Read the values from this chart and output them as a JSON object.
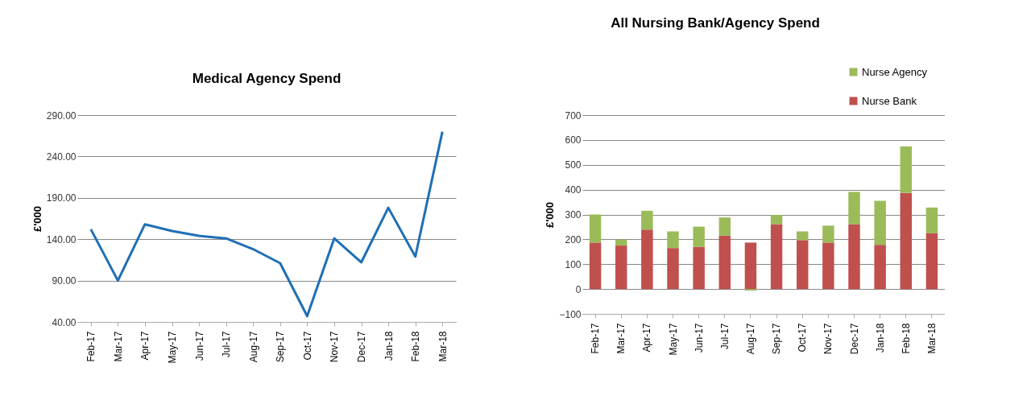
{
  "chart_data": [
    {
      "type": "line",
      "title": "Medical Agency Spend",
      "ylabel": "£'000",
      "categories": [
        "Feb-17",
        "Mar-17",
        "Apr-17",
        "May-17",
        "Jun-17",
        "Jul-17",
        "Aug-17",
        "Sep-17",
        "Oct-17",
        "Nov-17",
        "Dec-17",
        "Jan-18",
        "Feb-18",
        "Mar-18"
      ],
      "series": [
        {
          "color": "#1f6fb5",
          "values": [
            152,
            90,
            158,
            150,
            144,
            141,
            128,
            111,
            47,
            141,
            112,
            178,
            119,
            270
          ]
        }
      ],
      "ylim": [
        40,
        290
      ],
      "yticks": [
        {
          "value": 40,
          "label": "40.00"
        },
        {
          "value": 90,
          "label": "90.00"
        },
        {
          "value": 140,
          "label": "140.00"
        },
        {
          "value": 190,
          "label": "190.00"
        },
        {
          "value": 240,
          "label": "240.00"
        },
        {
          "value": 290,
          "label": "290.00"
        }
      ],
      "grid": "y",
      "legend": false,
      "marker": "none",
      "line_style": "solid"
    },
    {
      "type": "bar",
      "title": "All Nursing Bank/Agency Spend",
      "ylabel": "£'000",
      "stacked": true,
      "categories": [
        "Feb-17",
        "Mar-17",
        "Apr-17",
        "May-17",
        "Jun-17",
        "Jul-17",
        "Aug-17",
        "Sep-17",
        "Oct-17",
        "Nov-17",
        "Dec-17",
        "Jan-18",
        "Feb-18",
        "Mar-18"
      ],
      "series": [
        {
          "name": "Nurse Bank",
          "color": "#c0504d",
          "values": [
            187,
            175,
            239,
            165,
            170,
            215,
            187,
            261,
            197,
            187,
            261,
            178,
            387,
            224
          ]
        },
        {
          "name": "Nurse Agency",
          "color": "#9bbb59",
          "values": [
            113,
            24,
            76,
            67,
            81,
            73,
            -6,
            37,
            35,
            68,
            130,
            177,
            187,
            104
          ]
        }
      ],
      "ylim": [
        -100,
        700
      ],
      "yticks": [
        -100,
        0,
        100,
        200,
        300,
        400,
        500,
        600,
        700
      ],
      "grid": "y",
      "legend": "top right"
    }
  ]
}
